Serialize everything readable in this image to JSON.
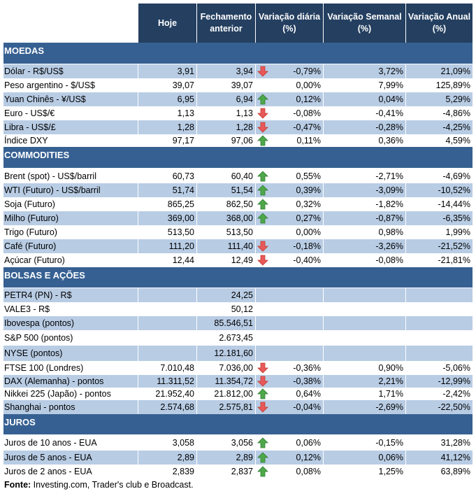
{
  "header": {
    "columns": [
      "",
      "Hoje",
      "Fechamento anterior",
      "Variação diária (%)",
      "Variação Semanal (%)",
      "Variação Anual (%)"
    ]
  },
  "colors": {
    "header_bg": "#243f60",
    "section_bg": "#366092",
    "shaded_row": "#b8cce4",
    "up_arrow": "#4ea84a",
    "down_arrow": "#e8595a"
  },
  "sections": [
    {
      "title": "MOEDAS",
      "rows": [
        {
          "label": "Dólar - R$/US$",
          "hoje": "3,91",
          "fech": "3,94",
          "trend": "down",
          "diaria": "-0,79%",
          "semanal": "3,72%",
          "anual": "21,09%"
        },
        {
          "label": "Peso argentino - $/US$",
          "hoje": "39,07",
          "fech": "39,07",
          "trend": "",
          "diaria": "0,00%",
          "semanal": "7,99%",
          "anual": "125,89%"
        },
        {
          "label": "Yuan Chinês - ¥/US$",
          "hoje": "6,95",
          "fech": "6,94",
          "trend": "up",
          "diaria": "0,12%",
          "semanal": "0,04%",
          "anual": "5,29%"
        },
        {
          "label": "Euro - US$/€",
          "hoje": "1,13",
          "fech": "1,13",
          "trend": "down",
          "diaria": "-0,08%",
          "semanal": "-0,41%",
          "anual": "-4,86%"
        },
        {
          "label": "Libra - US$/£",
          "hoje": "1,28",
          "fech": "1,28",
          "trend": "down",
          "diaria": "-0,47%",
          "semanal": "-0,28%",
          "anual": "-4,25%"
        },
        {
          "label": "Índice DXY",
          "hoje": "97,17",
          "fech": "97,06",
          "trend": "up",
          "diaria": "0,11%",
          "semanal": "0,36%",
          "anual": "4,59%"
        }
      ]
    },
    {
      "title": "COMMODITIES",
      "rows": [
        {
          "label": "Brent (spot) - US$/barril",
          "hoje": "60,73",
          "fech": "60,40",
          "trend": "up",
          "diaria": "0,55%",
          "semanal": "-2,71%",
          "anual": "-4,69%"
        },
        {
          "label": "WTI (Futuro) - US$/barril",
          "hoje": "51,74",
          "fech": "51,54",
          "trend": "up",
          "diaria": "0,39%",
          "semanal": "-3,09%",
          "anual": "-10,52%"
        },
        {
          "label": "Soja (Futuro)",
          "hoje": "865,25",
          "fech": "862,50",
          "trend": "up",
          "diaria": "0,32%",
          "semanal": "-1,82%",
          "anual": "-14,44%"
        },
        {
          "label": "Milho (Futuro)",
          "hoje": "369,00",
          "fech": "368,00",
          "trend": "up",
          "diaria": "0,27%",
          "semanal": "-0,87%",
          "anual": "-6,35%"
        },
        {
          "label": "Trigo (Futuro)",
          "hoje": "513,50",
          "fech": "513,50",
          "trend": "",
          "diaria": "0,00%",
          "semanal": "0,98%",
          "anual": "1,99%"
        },
        {
          "label": "Café (Futuro)",
          "hoje": "111,20",
          "fech": "111,40",
          "trend": "down",
          "diaria": "-0,18%",
          "semanal": "-3,26%",
          "anual": "-21,52%"
        },
        {
          "label": "Açúcar (Futuro)",
          "hoje": "12,44",
          "fech": "12,49",
          "trend": "down",
          "diaria": "-0,40%",
          "semanal": "-0,08%",
          "anual": "-21,81%"
        }
      ]
    },
    {
      "title": "BOLSAS E AÇÕES",
      "rows": [
        {
          "label": "PETR4 (PN) - R$",
          "hoje": "",
          "fech": "24,25",
          "trend": "",
          "diaria": "",
          "semanal": "",
          "anual": ""
        },
        {
          "label": "VALE3 - R$",
          "hoje": "",
          "fech": "50,12",
          "trend": "",
          "diaria": "",
          "semanal": "",
          "anual": ""
        },
        {
          "label": "Ibovespa (pontos)",
          "hoje": "",
          "fech": "85.546,51",
          "trend": "",
          "diaria": "",
          "semanal": "",
          "anual": ""
        },
        {
          "label": "S&P 500 (pontos)",
          "hoje": "",
          "fech": "2.673,45",
          "trend": "",
          "diaria": "",
          "semanal": "",
          "anual": ""
        },
        {
          "label": "NYSE (pontos)",
          "hoje": "",
          "fech": "12.181,60",
          "trend": "",
          "diaria": "",
          "semanal": "",
          "anual": ""
        },
        {
          "label": "FTSE 100 (Londres)",
          "hoje": "7.010,48",
          "fech": "7.036,00",
          "trend": "down",
          "diaria": "-0,36%",
          "semanal": "0,90%",
          "anual": "-5,06%"
        },
        {
          "label": "DAX (Alemanha) - pontos",
          "hoje": "11.311,52",
          "fech": "11.354,72",
          "trend": "down",
          "diaria": "-0,38%",
          "semanal": "2,21%",
          "anual": "-12,99%"
        },
        {
          "label": "Nikkei 225 (Japão) - pontos",
          "hoje": "21.952,40",
          "fech": "21.812,00",
          "trend": "up",
          "diaria": "0,64%",
          "semanal": "1,71%",
          "anual": "-2,42%"
        },
        {
          "label": "Shanghai - pontos",
          "hoje": "2.574,68",
          "fech": "2.575,81",
          "trend": "down",
          "diaria": "-0,04%",
          "semanal": "-2,69%",
          "anual": "-22,50%"
        }
      ]
    },
    {
      "title": "JUROS",
      "rows": [
        {
          "label": "Juros de 10 anos - EUA",
          "hoje": "3,058",
          "fech": "3,056",
          "trend": "up",
          "diaria": "0,06%",
          "semanal": "-0,15%",
          "anual": "31,28%"
        },
        {
          "label": "Juros de 5 anos - EUA",
          "hoje": "2,89",
          "fech": "2,89",
          "trend": "up",
          "diaria": "0,12%",
          "semanal": "0,06%",
          "anual": "41,12%"
        },
        {
          "label": "Juros de 2 anos - EUA",
          "hoje": "2,839",
          "fech": "2,837",
          "trend": "up",
          "diaria": "0,08%",
          "semanal": "1,25%",
          "anual": "63,89%"
        }
      ]
    }
  ],
  "footer": {
    "bold": "Fonte:",
    "text": " Investing.com, Trader's club e Broadcast."
  }
}
